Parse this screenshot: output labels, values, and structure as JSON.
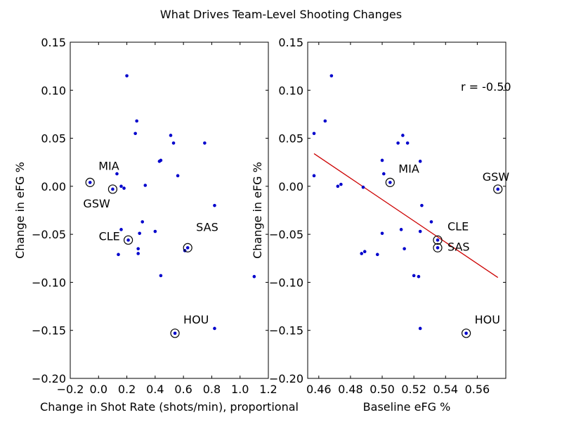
{
  "figure": {
    "title": "What Drives Team-Level Shooting Changes"
  },
  "colors": {
    "points": "#0000cc",
    "regression": "#cc0000",
    "highlight": "#000000",
    "axes": "#000000"
  },
  "chart_data": [
    {
      "type": "scatter",
      "title": "",
      "xlabel": "Change in Shot Rate (shots/min), proportional",
      "ylabel": "Change in eFG %",
      "xlim": [
        -0.2,
        1.2
      ],
      "ylim": [
        -0.2,
        0.15
      ],
      "xticks": [
        -0.2,
        0.0,
        0.2,
        0.4,
        0.6,
        0.8,
        1.0,
        1.2
      ],
      "xtick_labels": [
        "−0.2",
        "0.0",
        "0.2",
        "0.4",
        "0.6",
        "0.8",
        "1.0",
        "1.2"
      ],
      "yticks": [
        -0.2,
        -0.15,
        -0.1,
        -0.05,
        0.0,
        0.05,
        0.1,
        0.15
      ],
      "ytick_labels": [
        "−0.20",
        "−0.15",
        "−0.10",
        "−0.05",
        "0.00",
        "0.05",
        "0.10",
        "0.15"
      ],
      "grid": false,
      "points": [
        {
          "x": 0.2,
          "y": 0.115
        },
        {
          "x": 0.27,
          "y": 0.068
        },
        {
          "x": 0.26,
          "y": 0.055
        },
        {
          "x": 0.51,
          "y": 0.053
        },
        {
          "x": 0.53,
          "y": 0.045
        },
        {
          "x": 0.75,
          "y": 0.045
        },
        {
          "x": 0.43,
          "y": 0.026
        },
        {
          "x": 0.44,
          "y": 0.027
        },
        {
          "x": 0.13,
          "y": 0.013
        },
        {
          "x": 0.56,
          "y": 0.011
        },
        {
          "x": -0.06,
          "y": 0.004
        },
        {
          "x": 0.16,
          "y": 0.0
        },
        {
          "x": 0.18,
          "y": -0.002
        },
        {
          "x": 0.1,
          "y": -0.003
        },
        {
          "x": 0.33,
          "y": 0.001
        },
        {
          "x": 0.82,
          "y": -0.02
        },
        {
          "x": 0.31,
          "y": -0.037
        },
        {
          "x": 0.16,
          "y": -0.045
        },
        {
          "x": 0.29,
          "y": -0.049
        },
        {
          "x": 0.4,
          "y": -0.047
        },
        {
          "x": 0.21,
          "y": -0.056
        },
        {
          "x": 0.28,
          "y": -0.065
        },
        {
          "x": 0.28,
          "y": -0.07
        },
        {
          "x": 0.14,
          "y": -0.071
        },
        {
          "x": 0.63,
          "y": -0.064
        },
        {
          "x": 0.61,
          "y": -0.067
        },
        {
          "x": 0.44,
          "y": -0.093
        },
        {
          "x": 1.1,
          "y": -0.094
        },
        {
          "x": 0.82,
          "y": -0.148
        },
        {
          "x": 0.54,
          "y": -0.153
        }
      ],
      "highlighted": [
        {
          "label": "MIA",
          "x": -0.06,
          "y": 0.004
        },
        {
          "label": "GSW",
          "x": 0.1,
          "y": -0.003
        },
        {
          "label": "CLE",
          "x": 0.21,
          "y": -0.056
        },
        {
          "label": "SAS",
          "x": 0.63,
          "y": -0.064
        },
        {
          "label": "HOU",
          "x": 0.54,
          "y": -0.153
        }
      ]
    },
    {
      "type": "scatter",
      "title": "",
      "xlabel": "Baseline eFG %",
      "ylabel": "Change in eFG %",
      "xlim": [
        0.453,
        0.578
      ],
      "ylim": [
        -0.2,
        0.15
      ],
      "xticks": [
        0.46,
        0.48,
        0.5,
        0.52,
        0.54,
        0.56
      ],
      "xtick_labels": [
        "0.46",
        "0.48",
        "0.50",
        "0.52",
        "0.54",
        "0.56"
      ],
      "yticks": [
        -0.2,
        -0.15,
        -0.1,
        -0.05,
        0.0,
        0.05,
        0.1,
        0.15
      ],
      "ytick_labels": [
        "−0.20",
        "−0.15",
        "−0.10",
        "−0.05",
        "0.00",
        "0.05",
        "0.10",
        "0.15"
      ],
      "grid": false,
      "annotation": "r = -0.50",
      "regression": {
        "x1": 0.457,
        "y1": 0.034,
        "x2": 0.573,
        "y2": -0.095
      },
      "points": [
        {
          "x": 0.457,
          "y": 0.055
        },
        {
          "x": 0.457,
          "y": 0.011
        },
        {
          "x": 0.464,
          "y": 0.068
        },
        {
          "x": 0.468,
          "y": 0.115
        },
        {
          "x": 0.472,
          "y": 0.0
        },
        {
          "x": 0.474,
          "y": 0.002
        },
        {
          "x": 0.488,
          "y": -0.001
        },
        {
          "x": 0.487,
          "y": -0.07
        },
        {
          "x": 0.489,
          "y": -0.068
        },
        {
          "x": 0.497,
          "y": -0.071
        },
        {
          "x": 0.5,
          "y": 0.027
        },
        {
          "x": 0.5,
          "y": -0.049
        },
        {
          "x": 0.501,
          "y": 0.013
        },
        {
          "x": 0.505,
          "y": 0.004
        },
        {
          "x": 0.51,
          "y": 0.045
        },
        {
          "x": 0.512,
          "y": -0.045
        },
        {
          "x": 0.513,
          "y": 0.053
        },
        {
          "x": 0.514,
          "y": -0.065
        },
        {
          "x": 0.516,
          "y": 0.045
        },
        {
          "x": 0.52,
          "y": -0.093
        },
        {
          "x": 0.523,
          "y": -0.094
        },
        {
          "x": 0.524,
          "y": 0.026
        },
        {
          "x": 0.524,
          "y": -0.047
        },
        {
          "x": 0.524,
          "y": -0.148
        },
        {
          "x": 0.525,
          "y": -0.02
        },
        {
          "x": 0.531,
          "y": -0.037
        },
        {
          "x": 0.535,
          "y": -0.056
        },
        {
          "x": 0.535,
          "y": -0.064
        },
        {
          "x": 0.553,
          "y": -0.153
        },
        {
          "x": 0.573,
          "y": -0.003
        }
      ],
      "highlighted": [
        {
          "label": "MIA",
          "x": 0.505,
          "y": 0.004
        },
        {
          "label": "GSW",
          "x": 0.573,
          "y": -0.003
        },
        {
          "label": "CLE",
          "x": 0.535,
          "y": -0.056
        },
        {
          "label": "SAS",
          "x": 0.535,
          "y": -0.064
        },
        {
          "label": "HOU",
          "x": 0.553,
          "y": -0.153
        }
      ]
    }
  ]
}
